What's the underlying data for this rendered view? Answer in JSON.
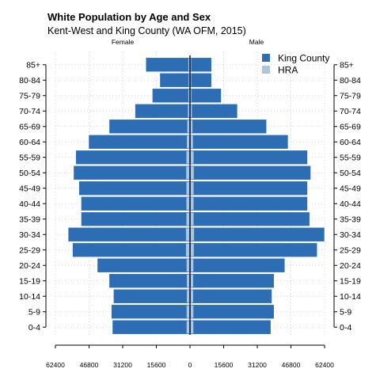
{
  "chart_data": {
    "type": "bar",
    "orientation": "horizontal-pyramid",
    "title": "White Population by Age and Sex",
    "subtitle": "Kent-West and King County (WA OFM, 2015)",
    "left_label": "Female",
    "right_label": "Male",
    "categories": [
      "0-4",
      "5-9",
      "10-14",
      "15-19",
      "20-24",
      "25-29",
      "30-34",
      "35-39",
      "40-44",
      "45-49",
      "50-54",
      "55-59",
      "60-64",
      "65-69",
      "70-74",
      "75-79",
      "80-84",
      "85+"
    ],
    "x_ticks": [
      "62400",
      "46800",
      "31200",
      "15600",
      "0",
      "15600",
      "31200",
      "46800",
      "62400"
    ],
    "xlim": [
      -62400,
      62400
    ],
    "series": [
      {
        "name": "King County",
        "color": "#2c6db3",
        "female": [
          36000,
          36500,
          35500,
          37500,
          43000,
          54500,
          56500,
          50500,
          50500,
          51500,
          54000,
          53000,
          47000,
          37500,
          25500,
          17500,
          14000,
          20500
        ],
        "male": [
          37500,
          39000,
          38000,
          39000,
          44000,
          59000,
          62400,
          55500,
          54500,
          54500,
          56000,
          54500,
          45500,
          35500,
          22000,
          14500,
          10000,
          10000
        ]
      },
      {
        "name": "HRA",
        "color": "#a9c6de",
        "female": [
          1200,
          1200,
          1100,
          1100,
          1200,
          1500,
          1500,
          1300,
          1300,
          1300,
          1400,
          1300,
          1100,
          900,
          600,
          400,
          300,
          400
        ],
        "male": [
          1200,
          1200,
          1100,
          1100,
          1200,
          1400,
          1500,
          1300,
          1300,
          1300,
          1400,
          1300,
          1000,
          800,
          500,
          300,
          200,
          200
        ]
      }
    ],
    "legend_position": "top-right",
    "grid": true
  }
}
